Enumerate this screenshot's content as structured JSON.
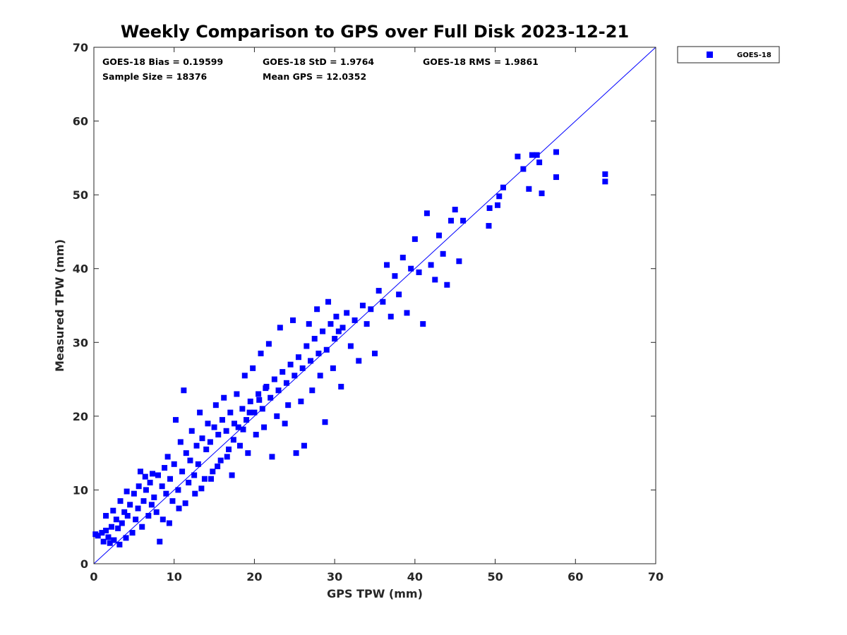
{
  "chart_data": {
    "type": "scatter",
    "title": "Weekly Comparison to GPS over Full Disk 2023-12-21",
    "xlabel": "GPS TPW (mm)",
    "ylabel": "Measured TPW (mm)",
    "xlim": [
      0,
      70
    ],
    "ylim": [
      0,
      70
    ],
    "xticks": [
      "0",
      "10",
      "20",
      "30",
      "40",
      "50",
      "60",
      "70"
    ],
    "yticks": [
      "0",
      "10",
      "20",
      "30",
      "40",
      "50",
      "60",
      "70"
    ],
    "grid": false,
    "legend_position": "top-right, outside plot",
    "reference_line": {
      "type": "one-to-one",
      "color": "#0000ff"
    },
    "stats": {
      "bias": "GOES-18 Bias = 0.19599",
      "std": "GOES-18 StD = 1.9764",
      "rms": "GOES-18 RMS = 1.9861",
      "sample_size": "Sample Size = 18376",
      "mean_gps": "Mean GPS = 12.0352"
    },
    "series": [
      {
        "name": "GOES-18",
        "color": "#0000ff",
        "marker": "square",
        "points": [
          [
            0.2,
            4.0
          ],
          [
            0.5,
            3.8
          ],
          [
            1.0,
            4.2
          ],
          [
            1.2,
            3.0
          ],
          [
            1.5,
            4.5
          ],
          [
            1.8,
            3.6
          ],
          [
            2.0,
            2.8
          ],
          [
            2.2,
            5.0
          ],
          [
            2.5,
            3.2
          ],
          [
            2.8,
            6.0
          ],
          [
            3.0,
            4.8
          ],
          [
            3.2,
            2.6
          ],
          [
            3.5,
            5.5
          ],
          [
            3.8,
            7.0
          ],
          [
            4.0,
            3.5
          ],
          [
            4.2,
            6.5
          ],
          [
            4.5,
            8.0
          ],
          [
            4.8,
            4.2
          ],
          [
            5.0,
            9.5
          ],
          [
            5.2,
            6.0
          ],
          [
            5.5,
            7.5
          ],
          [
            5.8,
            12.5
          ],
          [
            6.0,
            5.0
          ],
          [
            6.2,
            8.5
          ],
          [
            6.5,
            10.0
          ],
          [
            6.8,
            6.5
          ],
          [
            7.0,
            11.0
          ],
          [
            7.2,
            8.0
          ],
          [
            7.5,
            9.0
          ],
          [
            7.8,
            7.0
          ],
          [
            8.0,
            12.0
          ],
          [
            8.2,
            3.0
          ],
          [
            8.5,
            10.5
          ],
          [
            8.8,
            13.0
          ],
          [
            9.0,
            9.5
          ],
          [
            9.2,
            14.5
          ],
          [
            9.5,
            11.5
          ],
          [
            9.8,
            8.5
          ],
          [
            10.0,
            13.5
          ],
          [
            10.2,
            19.5
          ],
          [
            10.5,
            10.0
          ],
          [
            10.8,
            16.5
          ],
          [
            11.0,
            12.5
          ],
          [
            11.2,
            23.5
          ],
          [
            11.5,
            15.0
          ],
          [
            11.8,
            11.0
          ],
          [
            12.0,
            14.0
          ],
          [
            12.2,
            18.0
          ],
          [
            12.5,
            12.0
          ],
          [
            12.8,
            16.0
          ],
          [
            13.0,
            13.5
          ],
          [
            13.2,
            20.5
          ],
          [
            13.5,
            17.0
          ],
          [
            13.8,
            11.5
          ],
          [
            14.0,
            15.5
          ],
          [
            14.2,
            19.0
          ],
          [
            14.5,
            16.5
          ],
          [
            14.8,
            12.5
          ],
          [
            15.0,
            18.5
          ],
          [
            15.2,
            21.5
          ],
          [
            15.5,
            17.5
          ],
          [
            15.8,
            14.0
          ],
          [
            16.0,
            19.5
          ],
          [
            16.2,
            22.5
          ],
          [
            16.5,
            18.0
          ],
          [
            16.8,
            15.5
          ],
          [
            17.0,
            20.5
          ],
          [
            17.2,
            12.0
          ],
          [
            17.5,
            19.0
          ],
          [
            17.8,
            23.0
          ],
          [
            18.0,
            18.5
          ],
          [
            18.2,
            16.0
          ],
          [
            18.5,
            21.0
          ],
          [
            18.8,
            25.5
          ],
          [
            19.0,
            19.5
          ],
          [
            19.2,
            15.0
          ],
          [
            19.5,
            22.0
          ],
          [
            19.8,
            26.5
          ],
          [
            20.0,
            20.5
          ],
          [
            20.2,
            17.5
          ],
          [
            20.5,
            23.0
          ],
          [
            20.8,
            28.5
          ],
          [
            21.0,
            21.0
          ],
          [
            21.2,
            18.5
          ],
          [
            21.5,
            24.0
          ],
          [
            21.8,
            29.8
          ],
          [
            22.0,
            22.5
          ],
          [
            22.2,
            14.5
          ],
          [
            22.5,
            25.0
          ],
          [
            22.8,
            20.0
          ],
          [
            23.0,
            23.5
          ],
          [
            23.2,
            32.0
          ],
          [
            23.5,
            26.0
          ],
          [
            23.8,
            19.0
          ],
          [
            24.0,
            24.5
          ],
          [
            24.2,
            21.5
          ],
          [
            24.5,
            27.0
          ],
          [
            24.8,
            33.0
          ],
          [
            25.0,
            25.5
          ],
          [
            25.2,
            15.0
          ],
          [
            25.5,
            28.0
          ],
          [
            25.8,
            22.0
          ],
          [
            26.0,
            26.5
          ],
          [
            26.2,
            16.0
          ],
          [
            26.5,
            29.5
          ],
          [
            26.8,
            32.5
          ],
          [
            27.0,
            27.5
          ],
          [
            27.2,
            23.5
          ],
          [
            27.5,
            30.5
          ],
          [
            27.8,
            34.5
          ],
          [
            28.0,
            28.5
          ],
          [
            28.2,
            25.5
          ],
          [
            28.5,
            31.5
          ],
          [
            28.8,
            19.2
          ],
          [
            29.0,
            29.0
          ],
          [
            29.2,
            35.5
          ],
          [
            29.5,
            32.5
          ],
          [
            29.8,
            26.5
          ],
          [
            30.0,
            30.5
          ],
          [
            30.2,
            33.5
          ],
          [
            30.5,
            31.5
          ],
          [
            30.8,
            24.0
          ],
          [
            31.0,
            32.0
          ],
          [
            31.5,
            34.0
          ],
          [
            32.0,
            29.5
          ],
          [
            32.5,
            33.0
          ],
          [
            33.0,
            27.5
          ],
          [
            33.5,
            35.0
          ],
          [
            34.0,
            32.5
          ],
          [
            34.5,
            34.5
          ],
          [
            35.0,
            28.5
          ],
          [
            35.5,
            37.0
          ],
          [
            36.0,
            35.5
          ],
          [
            36.5,
            40.5
          ],
          [
            37.0,
            33.5
          ],
          [
            37.5,
            39.0
          ],
          [
            38.0,
            36.5
          ],
          [
            38.5,
            41.5
          ],
          [
            39.0,
            34.0
          ],
          [
            39.5,
            40.0
          ],
          [
            40.0,
            44.0
          ],
          [
            40.5,
            39.5
          ],
          [
            41.0,
            32.5
          ],
          [
            41.5,
            47.5
          ],
          [
            42.0,
            40.5
          ],
          [
            42.5,
            38.5
          ],
          [
            43.0,
            44.5
          ],
          [
            43.5,
            42.0
          ],
          [
            44.0,
            37.8
          ],
          [
            44.5,
            46.5
          ],
          [
            45.0,
            48.0
          ],
          [
            45.5,
            41.0
          ],
          [
            46.0,
            46.5
          ],
          [
            49.2,
            45.8
          ],
          [
            49.3,
            48.2
          ],
          [
            50.3,
            48.6
          ],
          [
            50.5,
            49.8
          ],
          [
            51.0,
            51.0
          ],
          [
            52.8,
            55.2
          ],
          [
            53.5,
            53.5
          ],
          [
            54.2,
            50.8
          ],
          [
            54.6,
            55.4
          ],
          [
            55.2,
            55.4
          ],
          [
            55.5,
            54.4
          ],
          [
            55.8,
            50.2
          ],
          [
            57.6,
            55.8
          ],
          [
            57.6,
            52.4
          ],
          [
            63.7,
            52.8
          ],
          [
            63.7,
            51.8
          ],
          [
            1.5,
            6.5
          ],
          [
            2.4,
            7.2
          ],
          [
            3.3,
            8.5
          ],
          [
            4.1,
            9.8
          ],
          [
            5.6,
            10.5
          ],
          [
            6.4,
            11.8
          ],
          [
            7.3,
            12.2
          ],
          [
            8.6,
            6.0
          ],
          [
            9.4,
            5.5
          ],
          [
            10.6,
            7.5
          ],
          [
            11.4,
            8.2
          ],
          [
            12.6,
            9.5
          ],
          [
            13.4,
            10.2
          ],
          [
            14.6,
            11.5
          ],
          [
            15.4,
            13.2
          ],
          [
            16.6,
            14.5
          ],
          [
            17.4,
            16.8
          ],
          [
            18.6,
            18.2
          ],
          [
            19.4,
            20.5
          ],
          [
            20.6,
            22.2
          ],
          [
            21.4,
            23.8
          ]
        ]
      }
    ]
  }
}
